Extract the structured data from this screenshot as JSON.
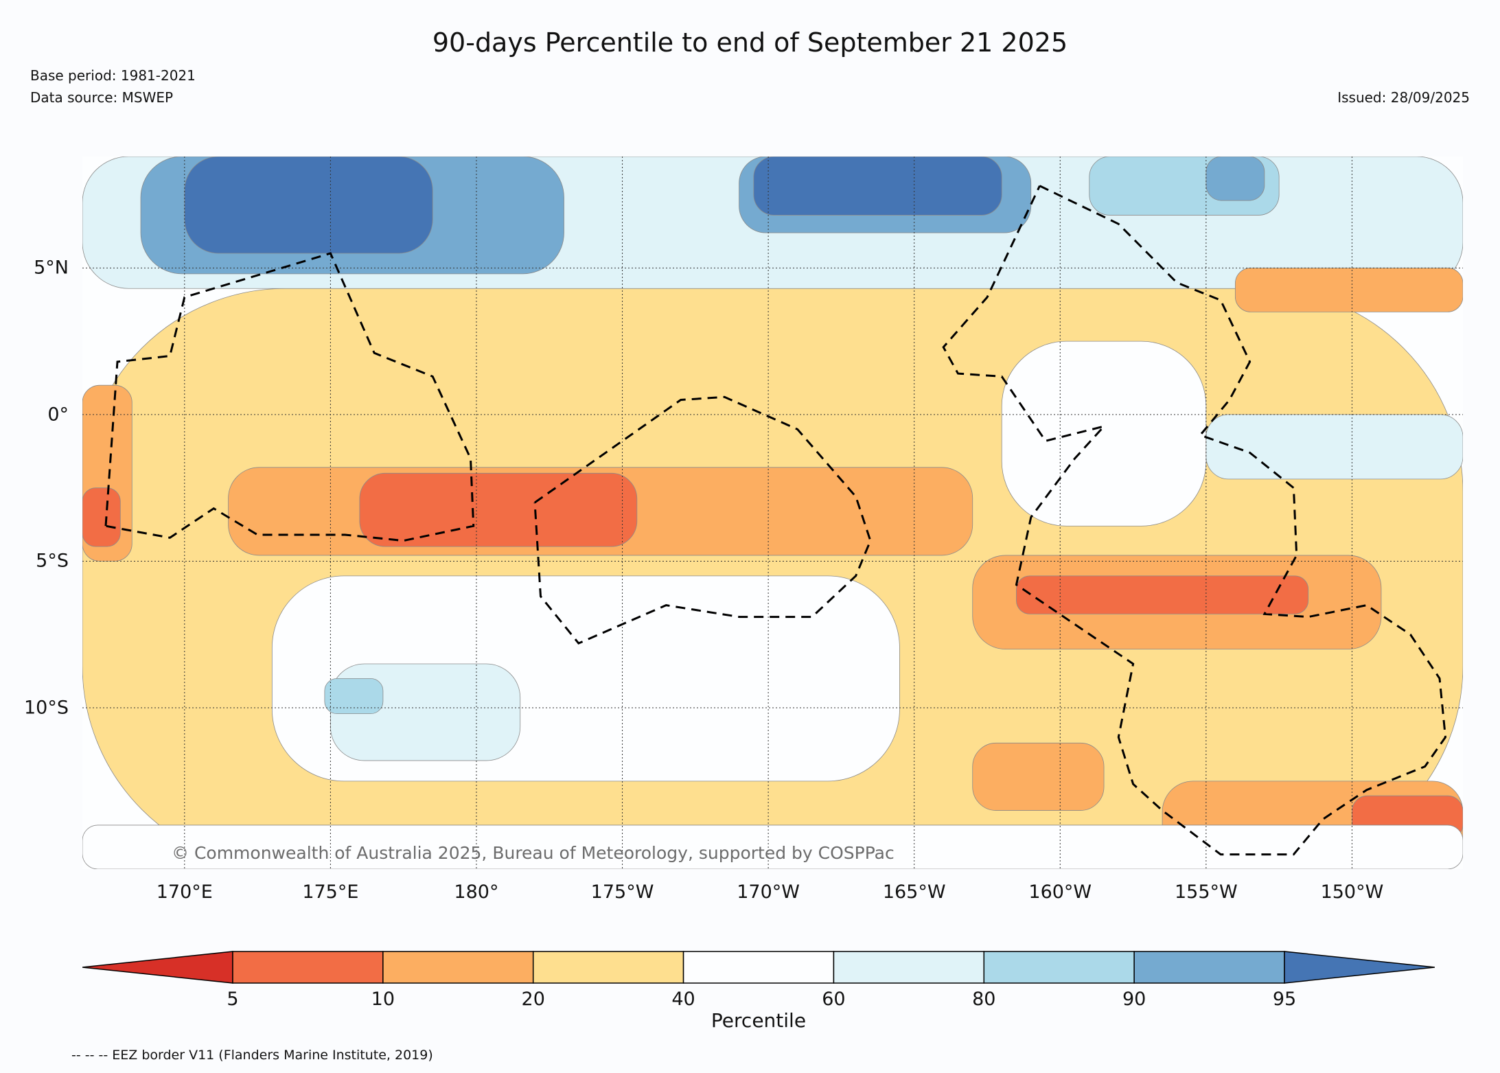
{
  "title": "90-days Percentile to end of September 21 2025",
  "base_period": "Base period: 1981-2021",
  "data_source": "Data source: MSWEP",
  "issued": "Issued: 28/09/2025",
  "copyright": "© Commonwealth of Australia 2025, Bureau of Meteorology, supported by COSPPac",
  "eez_note": "-- -- -- EEZ border V11 (Flanders Marine Institute, 2019)",
  "map": {
    "lon_range": [
      166.5,
      213.8
    ],
    "lat_range": [
      -15.5,
      8.8
    ],
    "lat_labels": [
      "5°N",
      "0°",
      "5°S",
      "10°S"
    ],
    "lon_labels": [
      "170°E",
      "175°E",
      "180°",
      "175°W",
      "170°W",
      "165°W",
      "160°W",
      "155°W",
      "150°W"
    ],
    "regions": [
      {
        "category": "20-40",
        "color": "#fedf8f",
        "lon": [
          166.5,
          213.8
        ],
        "lat": [
          -15.5,
          4.3
        ]
      },
      {
        "category": "60-80",
        "color": "#e0f3f8",
        "lon": [
          166.5,
          213.8
        ],
        "lat": [
          4.3,
          8.8
        ]
      },
      {
        "category": "90-95",
        "color": "#75aad0",
        "lon": [
          168.5,
          183.0
        ],
        "lat": [
          4.8,
          8.8
        ]
      },
      {
        "category": ">95",
        "color": "#4575b4",
        "lon": [
          170.0,
          178.5
        ],
        "lat": [
          5.5,
          8.8
        ]
      },
      {
        "category": "90-95",
        "color": "#75aad0",
        "lon": [
          189.0,
          199.0
        ],
        "lat": [
          6.2,
          8.8
        ]
      },
      {
        "category": ">95",
        "color": "#4575b4",
        "lon": [
          189.5,
          198.0
        ],
        "lat": [
          6.8,
          8.8
        ]
      },
      {
        "category": "80-90",
        "color": "#abd9e9",
        "lon": [
          201.0,
          207.5
        ],
        "lat": [
          6.8,
          8.8
        ]
      },
      {
        "category": "90-95",
        "color": "#75aad0",
        "lon": [
          205.0,
          207.0
        ],
        "lat": [
          7.3,
          8.8
        ]
      },
      {
        "category": "40-60",
        "color": "#fdfeff",
        "lon": [
          198.0,
          205.0
        ],
        "lat": [
          -3.8,
          2.5
        ]
      },
      {
        "category": "60-80",
        "color": "#e0f3f8",
        "lon": [
          205.0,
          213.8
        ],
        "lat": [
          -2.2,
          0.0
        ]
      },
      {
        "category": "10-20",
        "color": "#fcae61",
        "lon": [
          206.0,
          213.8
        ],
        "lat": [
          3.5,
          5.0
        ]
      },
      {
        "category": "10-20",
        "color": "#fcae61",
        "lon": [
          171.5,
          197.0
        ],
        "lat": [
          -4.8,
          -1.8
        ]
      },
      {
        "category": "5-10",
        "color": "#f26d45",
        "lon": [
          176.0,
          185.5
        ],
        "lat": [
          -4.5,
          -2.0
        ]
      },
      {
        "category": "10-20",
        "color": "#fcae61",
        "lon": [
          166.5,
          168.2
        ],
        "lat": [
          -5.0,
          1.0
        ]
      },
      {
        "category": "5-10",
        "color": "#f26d45",
        "lon": [
          166.5,
          167.8
        ],
        "lat": [
          -4.5,
          -2.5
        ]
      },
      {
        "category": "40-60",
        "color": "#fdfeff",
        "lon": [
          173.0,
          194.5
        ],
        "lat": [
          -12.5,
          -5.5
        ]
      },
      {
        "category": "60-80",
        "color": "#e0f3f8",
        "lon": [
          175.0,
          181.5
        ],
        "lat": [
          -11.8,
          -8.5
        ]
      },
      {
        "category": "80-90",
        "color": "#abd9e9",
        "lon": [
          174.8,
          176.8
        ],
        "lat": [
          -10.2,
          -9.0
        ]
      },
      {
        "category": "10-20",
        "color": "#fcae61",
        "lon": [
          197.0,
          211.0
        ],
        "lat": [
          -8.0,
          -4.8
        ]
      },
      {
        "category": "5-10",
        "color": "#f26d45",
        "lon": [
          198.5,
          208.5
        ],
        "lat": [
          -6.8,
          -5.5
        ]
      },
      {
        "category": "10-20",
        "color": "#fcae61",
        "lon": [
          203.5,
          213.8
        ],
        "lat": [
          -15.5,
          -12.5
        ]
      },
      {
        "category": "5-10",
        "color": "#f26d45",
        "lon": [
          210.0,
          213.8
        ],
        "lat": [
          -14.5,
          -13.0
        ]
      },
      {
        "category": "10-20",
        "color": "#fcae61",
        "lon": [
          197.0,
          201.5
        ],
        "lat": [
          -13.5,
          -11.2
        ]
      },
      {
        "category": "40-60",
        "color": "#fdfeff",
        "lon": [
          166.5,
          213.8
        ],
        "lat": [
          -15.5,
          -14.0
        ]
      }
    ],
    "eez_borders": [
      [
        [
          167.3,
          -3.8
        ],
        [
          167.7,
          1.8
        ],
        [
          169.5,
          2.0
        ],
        [
          170.0,
          4.0
        ],
        [
          175.0,
          5.5
        ],
        [
          176.5,
          2.1
        ],
        [
          178.5,
          1.3
        ],
        [
          179.8,
          -1.5
        ],
        [
          179.9,
          -3.8
        ],
        [
          177.5,
          -4.3
        ],
        [
          175.5,
          -4.1
        ],
        [
          172.5,
          -4.1
        ],
        [
          171.0,
          -3.2
        ],
        [
          169.5,
          -4.2
        ],
        [
          167.3,
          -3.8
        ]
      ],
      [
        [
          182.0,
          -3.0
        ],
        [
          187.0,
          0.5
        ],
        [
          188.5,
          0.6
        ],
        [
          191.0,
          -0.5
        ],
        [
          193.0,
          -2.8
        ],
        [
          193.5,
          -4.3
        ],
        [
          193.0,
          -5.5
        ],
        [
          191.5,
          -6.9
        ],
        [
          189.0,
          -6.9
        ],
        [
          186.5,
          -6.5
        ],
        [
          183.5,
          -7.8
        ],
        [
          182.2,
          -6.2
        ],
        [
          182.0,
          -3.0
        ]
      ],
      [
        [
          199.3,
          7.8
        ],
        [
          202.0,
          6.5
        ],
        [
          204.0,
          4.5
        ],
        [
          205.5,
          3.9
        ],
        [
          206.5,
          1.8
        ],
        [
          205.8,
          0.5
        ],
        [
          204.8,
          -0.7
        ],
        [
          206.5,
          -1.3
        ],
        [
          208.0,
          -2.5
        ],
        [
          208.1,
          -4.8
        ],
        [
          207.0,
          -6.8
        ],
        [
          208.5,
          -6.9
        ],
        [
          210.5,
          -6.5
        ],
        [
          212.0,
          -7.5
        ],
        [
          213.0,
          -9.0
        ],
        [
          213.2,
          -11.0
        ],
        [
          212.5,
          -12.0
        ],
        [
          210.5,
          -12.8
        ],
        [
          209.0,
          -13.8
        ],
        [
          208.0,
          -15.0
        ],
        [
          205.5,
          -15.0
        ],
        [
          203.5,
          -13.5
        ],
        [
          202.5,
          -12.6
        ],
        [
          202.0,
          -11.0
        ],
        [
          202.5,
          -8.5
        ],
        [
          198.5,
          -5.8
        ],
        [
          199.0,
          -3.5
        ],
        [
          200.5,
          -1.5
        ],
        [
          201.5,
          -0.4
        ],
        [
          199.5,
          -0.9
        ],
        [
          198.0,
          1.3
        ],
        [
          196.5,
          1.4
        ],
        [
          196.0,
          2.3
        ],
        [
          197.5,
          4.0
        ],
        [
          199.3,
          7.8
        ]
      ]
    ]
  },
  "colorbar": {
    "label": "Percentile",
    "ticks": [
      "5",
      "10",
      "20",
      "40",
      "60",
      "80",
      "90",
      "95"
    ],
    "segments": [
      {
        "range": "5-10",
        "color": "#f26d45"
      },
      {
        "range": "10-20",
        "color": "#fcae61"
      },
      {
        "range": "20-40",
        "color": "#fedf8f"
      },
      {
        "range": "40-60",
        "color": "#fdfeff"
      },
      {
        "range": "60-80",
        "color": "#e0f3f8"
      },
      {
        "range": "80-90",
        "color": "#abd9e9"
      },
      {
        "range": "90-95",
        "color": "#75aad0"
      }
    ],
    "under_color": "#d73027",
    "over_color": "#4575b4"
  }
}
